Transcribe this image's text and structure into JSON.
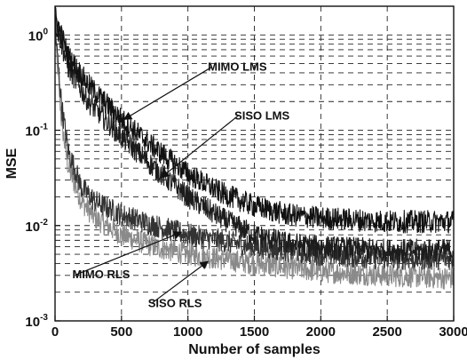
{
  "chart_data": {
    "type": "line",
    "title": "",
    "xlabel": "Number of samples",
    "ylabel": "MSE",
    "xlim": [
      0,
      3000
    ],
    "ylim": [
      0.001,
      2
    ],
    "yscale": "log",
    "grid": true,
    "grid_style": "dashed",
    "x_ticks": [
      0,
      500,
      1000,
      1500,
      2000,
      2500,
      3000
    ],
    "y_tick_labels": [
      {
        "base": "10",
        "exp": "0"
      },
      {
        "base": "10",
        "exp": "-1"
      },
      {
        "base": "10",
        "exp": "-2"
      },
      {
        "base": "10",
        "exp": "-3"
      }
    ],
    "series": [
      {
        "name": "MIMO LMS",
        "color": "#111111",
        "x": [
          0,
          100,
          250,
          500,
          750,
          1000,
          1250,
          1500,
          1750,
          2000,
          2500,
          3000
        ],
        "y": [
          1.6,
          0.6,
          0.3,
          0.13,
          0.065,
          0.035,
          0.022,
          0.016,
          0.013,
          0.012,
          0.011,
          0.011
        ]
      },
      {
        "name": "SISO LMS",
        "color": "#1c1c1c",
        "x": [
          0,
          100,
          250,
          500,
          750,
          1000,
          1250,
          1500,
          1750,
          2000,
          2500,
          3000
        ],
        "y": [
          1.4,
          0.45,
          0.2,
          0.085,
          0.04,
          0.02,
          0.012,
          0.008,
          0.0065,
          0.006,
          0.0055,
          0.0055
        ]
      },
      {
        "name": "MIMO RLS",
        "color": "#333333",
        "x": [
          0,
          50,
          100,
          200,
          300,
          500,
          750,
          1000,
          1500,
          2000,
          2500,
          3000
        ],
        "y": [
          1.2,
          0.18,
          0.06,
          0.025,
          0.018,
          0.013,
          0.01,
          0.008,
          0.006,
          0.005,
          0.0045,
          0.0045
        ]
      },
      {
        "name": "SISO RLS",
        "color": "#8a8a8a",
        "x": [
          0,
          50,
          100,
          200,
          300,
          500,
          750,
          1000,
          1500,
          2000,
          2500,
          3000
        ],
        "y": [
          1.0,
          0.12,
          0.04,
          0.018,
          0.012,
          0.008,
          0.006,
          0.005,
          0.004,
          0.0033,
          0.003,
          0.0028
        ]
      }
    ],
    "annotations": [
      {
        "text": "MIMO LMS",
        "x": 1150,
        "y": 0.42,
        "arrow_to": [
          520,
          0.13
        ]
      },
      {
        "text": "SISO LMS",
        "x": 1350,
        "y": 0.13,
        "arrow_to": [
          800,
          0.032
        ]
      },
      {
        "text": "MIMO RLS",
        "x": 130,
        "y": 0.0028,
        "arrow_to": [
          950,
          0.0085
        ]
      },
      {
        "text": "SISO RLS",
        "x": 700,
        "y": 0.0014,
        "arrow_to": [
          1150,
          0.0042
        ]
      }
    ]
  }
}
